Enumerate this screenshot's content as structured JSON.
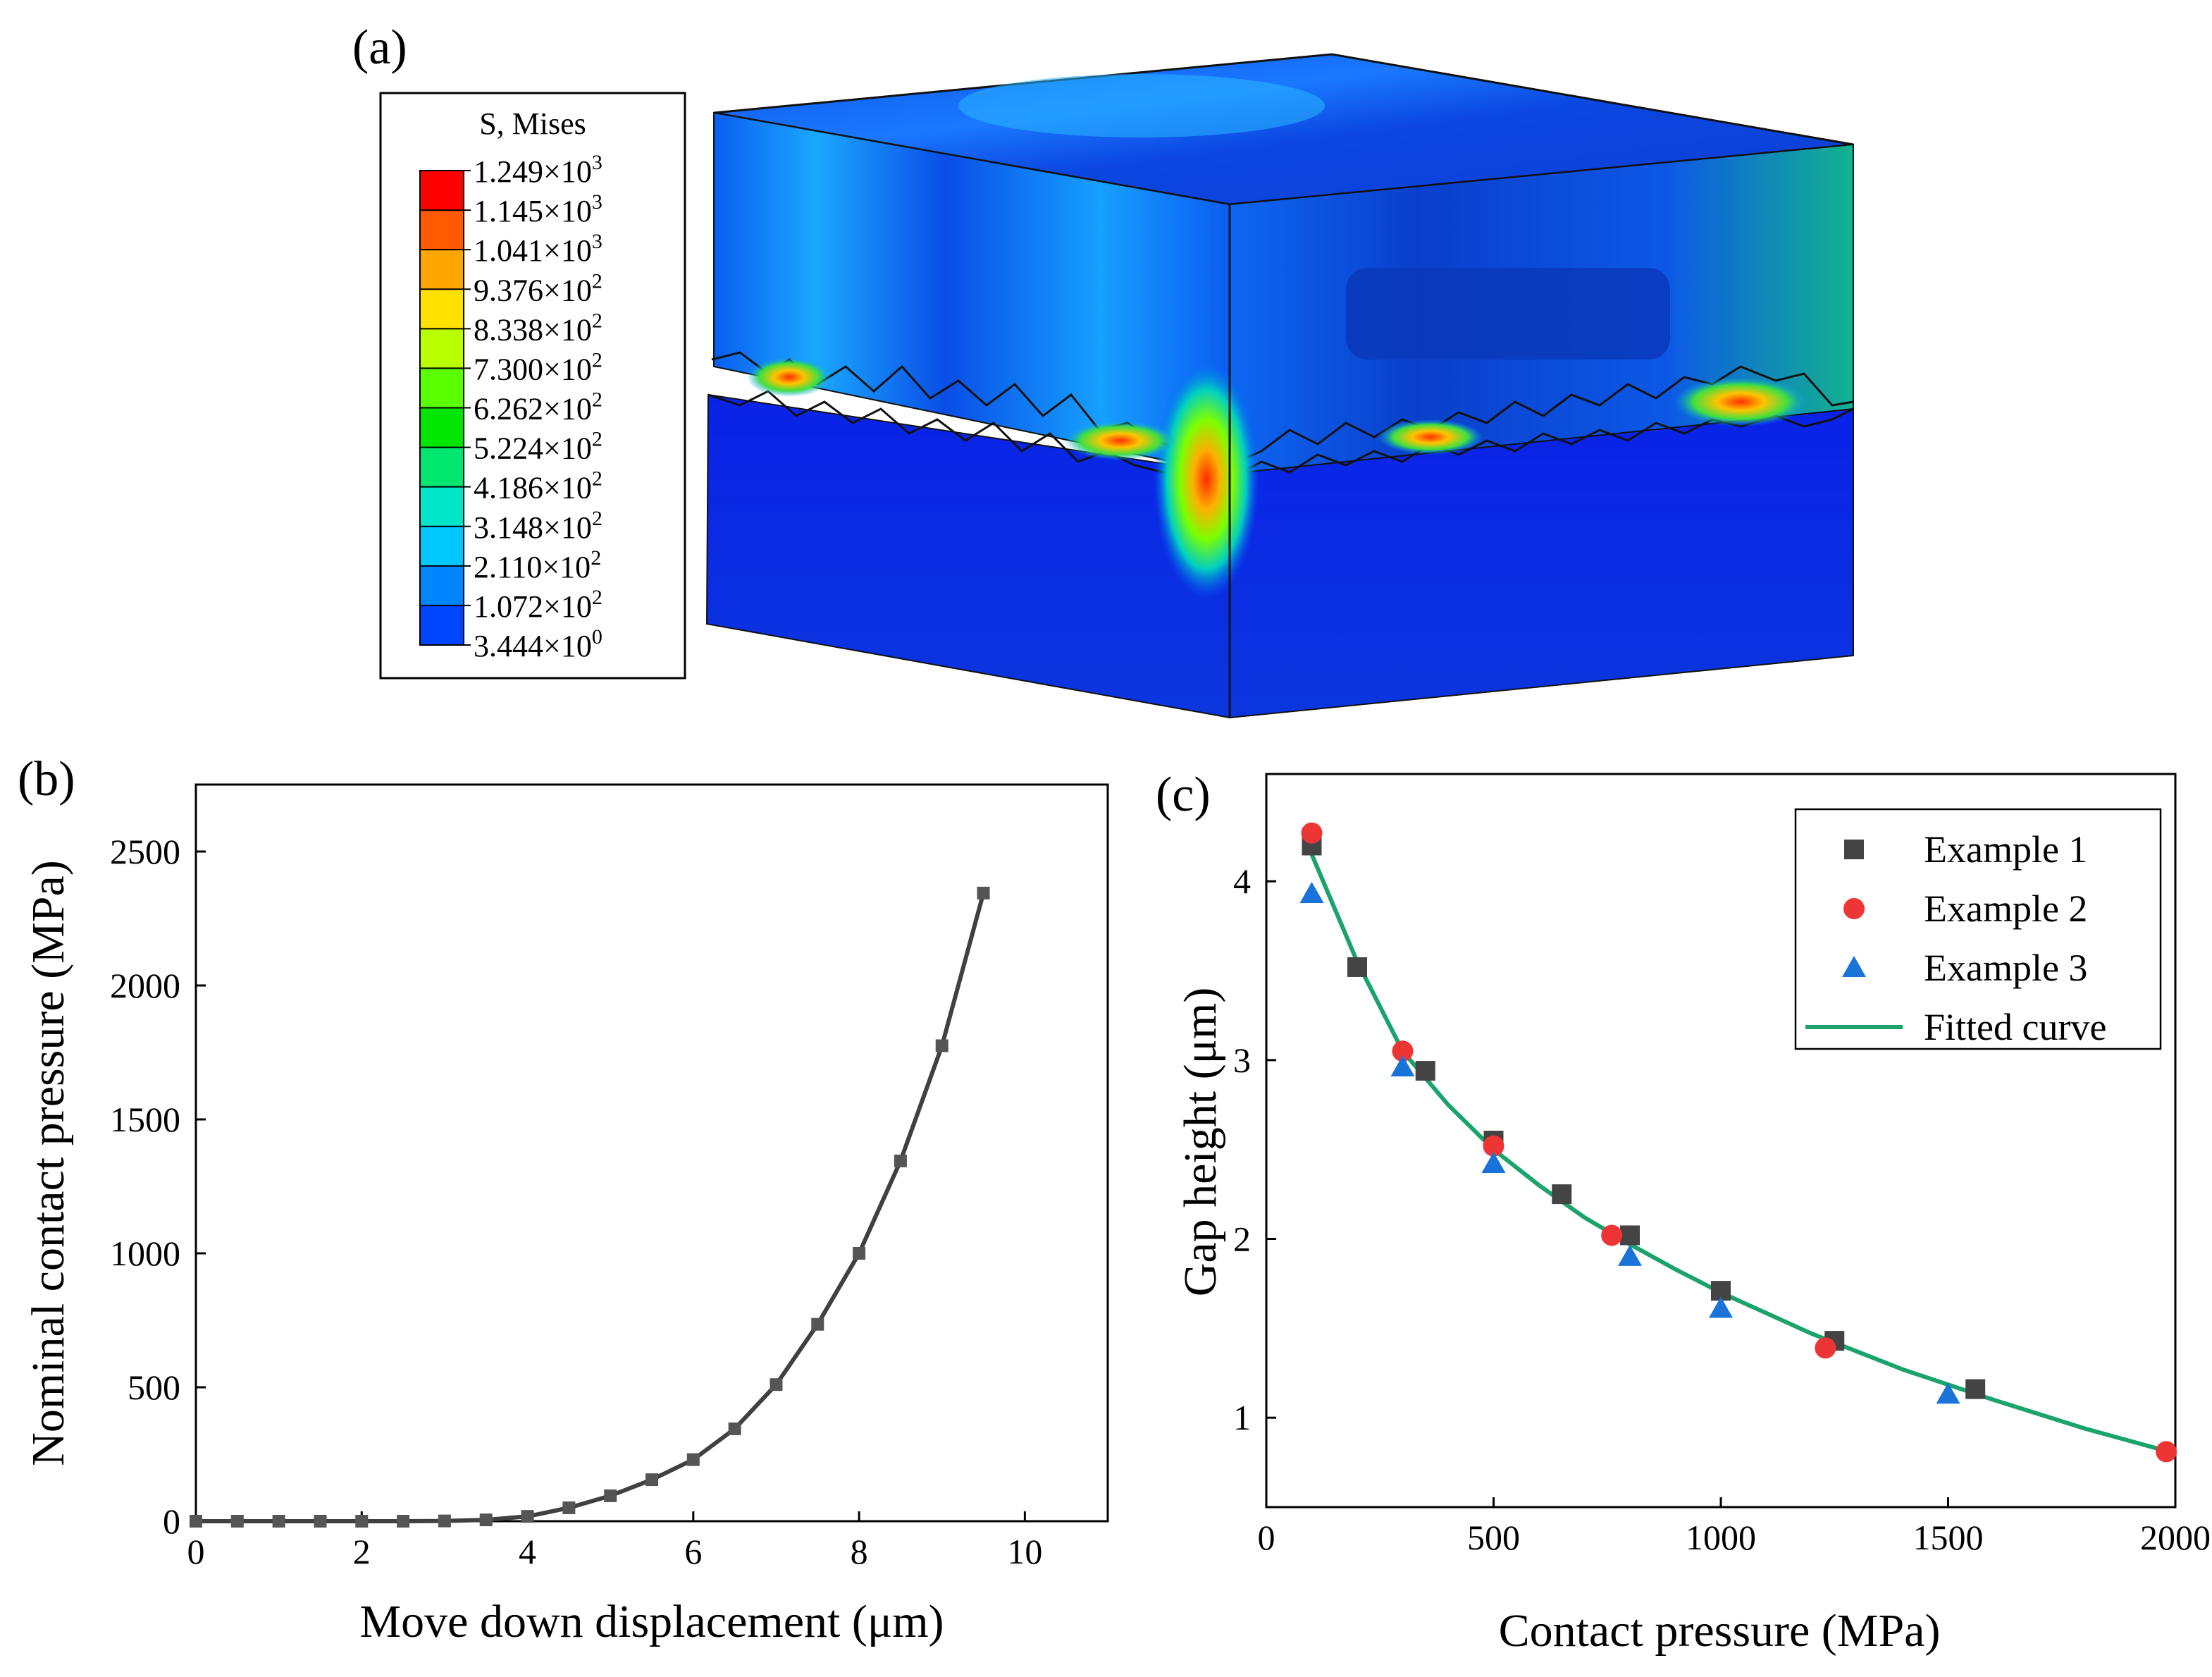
{
  "panel_labels": {
    "a": "(a)",
    "b": "(b)",
    "c": "(c)"
  },
  "colors": {
    "fitted_curve": "#1aa36b",
    "ex1": "#444444",
    "ex2": "#ee3535",
    "ex3": "#1a73d9",
    "line_b": "#404040"
  },
  "chart_data": [
    {
      "type": "contour-legend",
      "title": "S, Mises",
      "levels": [
        {
          "mantissa": "1.249",
          "exp": "3",
          "color": "#ff0000"
        },
        {
          "mantissa": "1.145",
          "exp": "3",
          "color": "#ff5a00"
        },
        {
          "mantissa": "1.041",
          "exp": "3",
          "color": "#ffa500"
        },
        {
          "mantissa": "9.376",
          "exp": "2",
          "color": "#ffe100"
        },
        {
          "mantissa": "8.338",
          "exp": "2",
          "color": "#b9ff00"
        },
        {
          "mantissa": "7.300",
          "exp": "2",
          "color": "#5aff00"
        },
        {
          "mantissa": "6.262",
          "exp": "2",
          "color": "#00e600"
        },
        {
          "mantissa": "5.224",
          "exp": "2",
          "color": "#00e66e"
        },
        {
          "mantissa": "4.186",
          "exp": "2",
          "color": "#00e6c8"
        },
        {
          "mantissa": "3.148",
          "exp": "2",
          "color": "#00c8ff"
        },
        {
          "mantissa": "2.110",
          "exp": "2",
          "color": "#0087ff"
        },
        {
          "mantissa": "1.072",
          "exp": "2",
          "color": "#0046ff"
        },
        {
          "mantissa": "3.444",
          "exp": "0",
          "color": "#0000ff"
        }
      ]
    },
    {
      "type": "line",
      "xlabel": "Move down displacement (μm)",
      "ylabel": "Nominal contact pressure (MPa)",
      "xlim": [
        0,
        11
      ],
      "ylim": [
        0,
        2750
      ],
      "xticks": [
        0,
        2,
        4,
        6,
        8,
        10
      ],
      "yticks": [
        0,
        500,
        1000,
        1500,
        2000,
        2500
      ],
      "x": [
        0,
        0.5,
        1,
        1.5,
        2,
        2.5,
        3,
        3.5,
        4,
        4.5,
        5,
        5.5,
        6,
        6.5,
        7,
        7.5,
        8,
        8.5,
        9,
        9.5
      ],
      "y": [
        0,
        0,
        0,
        0,
        0,
        0,
        1,
        5,
        18,
        50,
        95,
        155,
        230,
        345,
        510,
        735,
        1000,
        1345,
        1775,
        2345
      ]
    },
    {
      "type": "scatter",
      "xlabel": "Contact pressure (MPa)",
      "ylabel": "Gap height (μm)",
      "xlim": [
        0,
        2000
      ],
      "ylim": [
        0.5,
        4.6
      ],
      "xticks": [
        0,
        500,
        1000,
        1500,
        2000
      ],
      "yticks": [
        1,
        2,
        3,
        4
      ],
      "legend_position": "top-right",
      "series": [
        {
          "name": "Example 1",
          "marker": "square",
          "x": [
            100,
            200,
            350,
            500,
            650,
            800,
            1000,
            1250,
            1560
          ],
          "y": [
            4.2,
            3.52,
            2.94,
            2.55,
            2.25,
            2.02,
            1.71,
            1.43,
            1.16
          ]
        },
        {
          "name": "Example 2",
          "marker": "circle",
          "x": [
            100,
            300,
            500,
            760,
            1230,
            1980
          ],
          "y": [
            4.27,
            3.05,
            2.52,
            2.02,
            1.39,
            0.81
          ]
        },
        {
          "name": "Example 3",
          "marker": "triangle",
          "x": [
            100,
            300,
            500,
            800,
            1000,
            1500
          ],
          "y": [
            3.93,
            2.96,
            2.42,
            1.9,
            1.61,
            1.13
          ]
        },
        {
          "name": "Fitted curve",
          "marker": "line",
          "x": [
            100,
            200,
            300,
            400,
            500,
            600,
            700,
            800,
            900,
            1000,
            1200,
            1400,
            1600,
            1800,
            2000
          ],
          "y": [
            4.15,
            3.55,
            3.05,
            2.75,
            2.5,
            2.3,
            2.12,
            1.97,
            1.83,
            1.7,
            1.47,
            1.27,
            1.1,
            0.94,
            0.8
          ]
        }
      ]
    }
  ]
}
